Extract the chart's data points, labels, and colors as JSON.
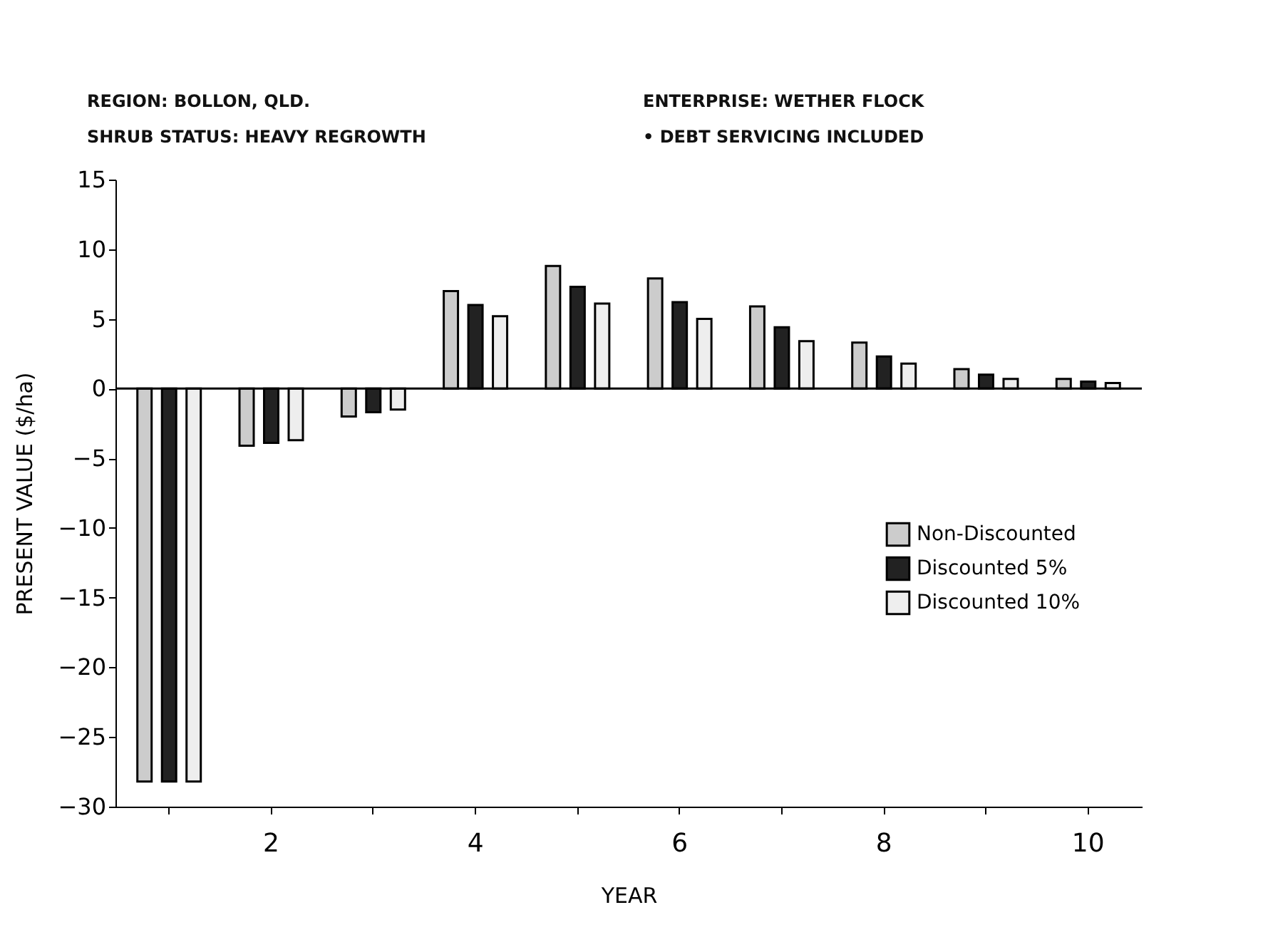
{
  "chart_data": {
    "type": "bar",
    "xlabel": "YEAR",
    "ylabel": "PRESENT VALUE ($/ha)",
    "annotations": [
      "REGION: BOLLON, QLD.",
      "ENTERPRISE: WETHER FLOCK",
      "SHRUB STATUS: HEAVY REGROWTH",
      "• DEBT SERVICING INCLUDED"
    ],
    "categories": [
      null,
      "2",
      null,
      "4",
      null,
      "6",
      null,
      "8",
      null,
      "10"
    ],
    "series": [
      {
        "name": "Non-Discounted",
        "color": "#cccccc",
        "values": [
          -28.2,
          -4.1,
          -2.0,
          7.0,
          8.8,
          7.9,
          5.9,
          3.3,
          1.4,
          0.7
        ]
      },
      {
        "name": "Discounted  5%",
        "color": "#222222",
        "values": [
          -28.2,
          -3.9,
          -1.7,
          6.0,
          7.3,
          6.2,
          4.4,
          2.3,
          1.0,
          0.5
        ]
      },
      {
        "name": "Discounted 10%",
        "color": "#eeeeee",
        "values": [
          -28.2,
          -3.7,
          -1.5,
          5.2,
          6.1,
          5.0,
          3.4,
          1.8,
          0.7,
          0.4
        ]
      }
    ],
    "ylim": [
      -30,
      15
    ],
    "yticks": [
      -30,
      -25,
      -20,
      -15,
      -10,
      -5,
      0,
      5,
      10,
      15
    ],
    "ref_lines": [
      {
        "axis": "y",
        "value": 0,
        "label": null,
        "color": "#000000"
      }
    ],
    "grid": false,
    "legend": "right"
  }
}
